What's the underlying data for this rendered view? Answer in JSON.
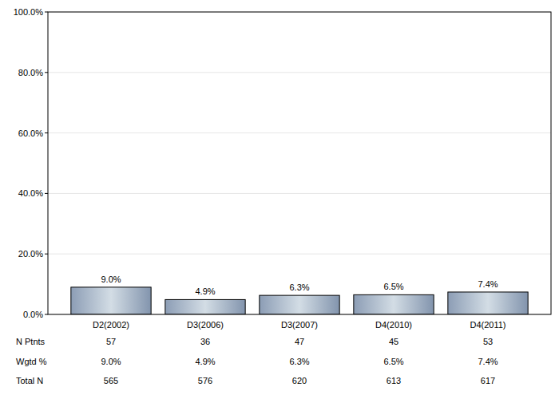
{
  "chart_data": {
    "type": "bar",
    "categories": [
      "D2(2002)",
      "D3(2006)",
      "D3(2007)",
      "D4(2010)",
      "D4(2011)"
    ],
    "values": [
      9.0,
      4.9,
      6.3,
      6.5,
      7.4
    ],
    "value_labels": [
      "9.0%",
      "4.9%",
      "6.3%",
      "6.5%",
      "7.4%"
    ],
    "data_labels": true,
    "ylim": [
      0,
      100
    ],
    "yticks": [
      {
        "value": 0,
        "label": "0.0%"
      },
      {
        "value": 20,
        "label": "20.0%"
      },
      {
        "value": 40,
        "label": "40.0%"
      },
      {
        "value": 60,
        "label": "60.0%"
      },
      {
        "value": 80,
        "label": "80.0%"
      },
      {
        "value": 100,
        "label": "100.0%"
      }
    ],
    "grid": true,
    "table": {
      "rows": [
        {
          "label": "N Ptnts",
          "values": [
            "57",
            "36",
            "47",
            "45",
            "53"
          ]
        },
        {
          "label": "Wgtd %",
          "values": [
            "9.0%",
            "4.9%",
            "6.3%",
            "6.5%",
            "7.4%"
          ]
        },
        {
          "label": "Total N",
          "values": [
            "565",
            "576",
            "620",
            "613",
            "617"
          ]
        }
      ]
    }
  }
}
